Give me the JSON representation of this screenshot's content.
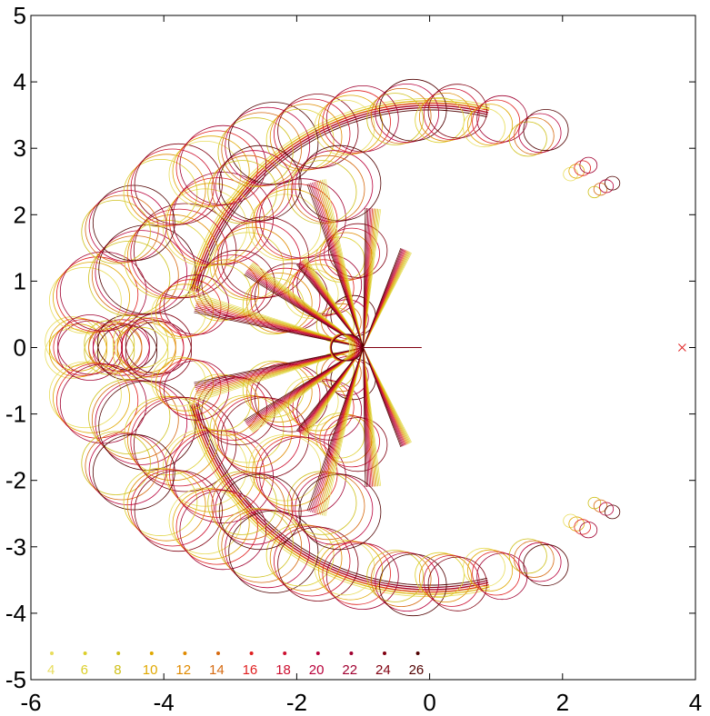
{
  "chart_data": {
    "type": "line",
    "title": "",
    "xlabel": "",
    "ylabel": "",
    "xlim": [
      -6,
      4
    ],
    "ylim": [
      -5,
      5
    ],
    "x_ticks": [
      "-6",
      "-4",
      "-2",
      "0",
      "2",
      "4"
    ],
    "y_ticks": [
      "5",
      "4",
      "3",
      "2",
      "1",
      "0",
      "-1",
      "-2",
      "-3",
      "-4",
      "-5"
    ],
    "grid": false,
    "legend_placement": "bottom-left, inside",
    "legend": [
      {
        "label": "4",
        "color": "#e8dd5c"
      },
      {
        "label": "6",
        "color": "#dccf2a"
      },
      {
        "label": "8",
        "color": "#cfc01a"
      },
      {
        "label": "10",
        "color": "#e0a800"
      },
      {
        "label": "12",
        "color": "#e08a00"
      },
      {
        "label": "14",
        "color": "#d66a10"
      },
      {
        "label": "16",
        "color": "#e02020"
      },
      {
        "label": "18",
        "color": "#cc1030"
      },
      {
        "label": "20",
        "color": "#b8003a"
      },
      {
        "label": "22",
        "color": "#a00030"
      },
      {
        "label": "24",
        "color": "#800010"
      },
      {
        "label": "26",
        "color": "#500000"
      }
    ],
    "marker_point": {
      "x": 3.8,
      "y": 0,
      "symbol": "x",
      "color": "#e02020"
    },
    "outer_arc": {
      "center": [
        0,
        0
      ],
      "radius": 3.75,
      "from_deg": -76,
      "to_deg": 76
    },
    "tail_segment": {
      "x": [
        -1.05,
        -0.12
      ],
      "y": 0
    }
  }
}
